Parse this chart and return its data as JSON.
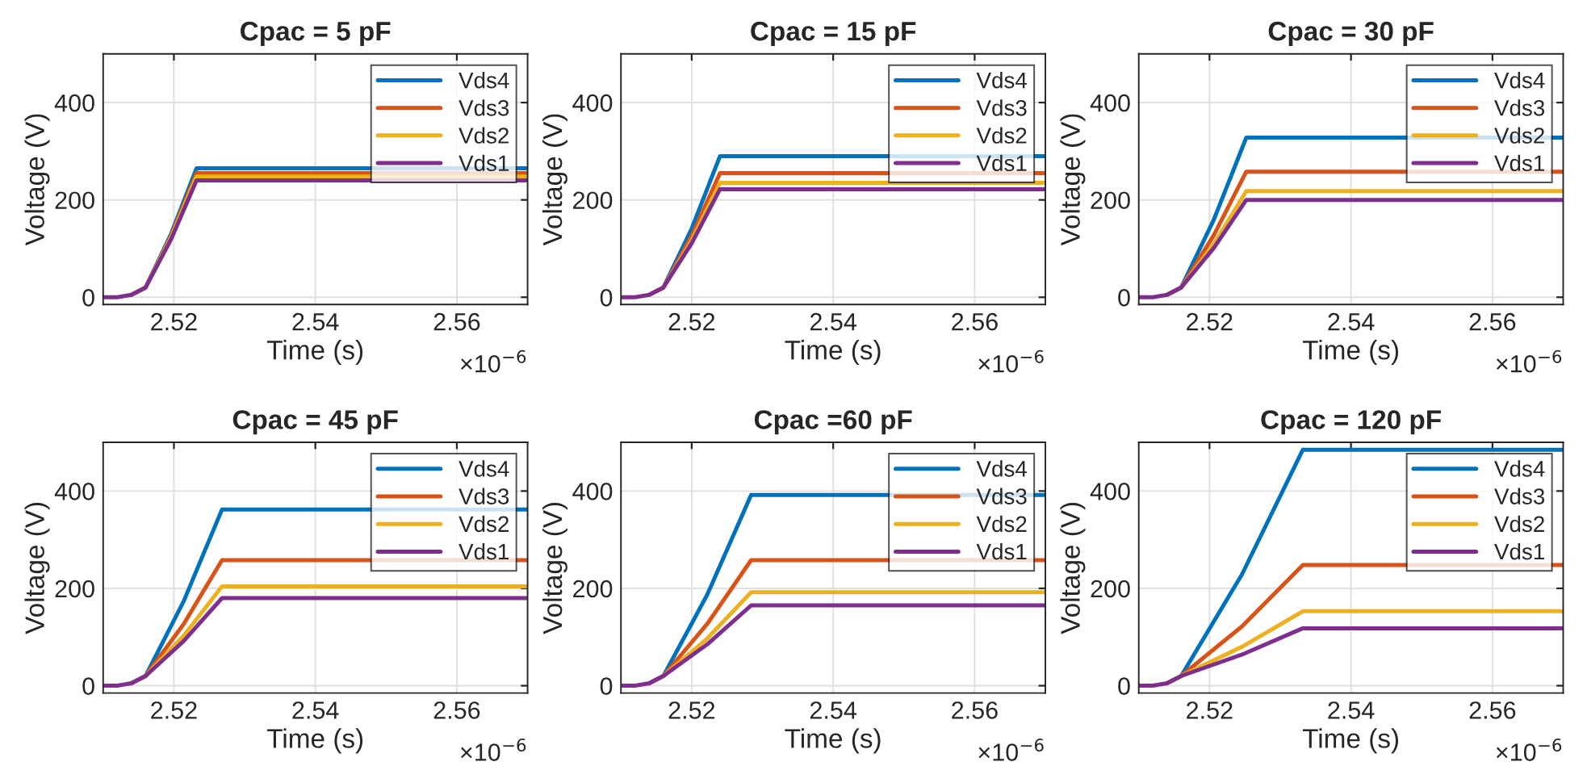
{
  "chart_data": [
    {
      "type": "line",
      "title": "Cpac = 5 pF",
      "xlabel": "Time (s)",
      "ylabel": "Voltage (V)",
      "annotations": [
        "×10$^{−6}$"
      ],
      "x": [
        2.51,
        2.512,
        2.514,
        2.516,
        2.5196,
        2.5232,
        2.57
      ],
      "xlim": [
        2.51,
        2.57
      ],
      "xticks": [
        2.52,
        2.54,
        2.56
      ],
      "ylim": [
        -15,
        500
      ],
      "yticks": [
        0,
        200,
        400
      ],
      "grid": true,
      "legend": "top right",
      "line_style": "solid",
      "marker": "none",
      "series": [
        {
          "name": "Vds4",
          "color": "#0072bd",
          "values": [
            null,
            null,
            5,
            20,
            130,
            265,
            265
          ]
        },
        {
          "name": "Vds3",
          "color": "#d95319",
          "values": [
            null,
            null,
            5,
            20,
            126,
            255,
            255
          ]
        },
        {
          "name": "Vds2",
          "color": "#edb120",
          "values": [
            null,
            null,
            5,
            20,
            123,
            248,
            248
          ]
        },
        {
          "name": "Vds1",
          "color": "#7e2f8e",
          "values": [
            0,
            0,
            5,
            20,
            119,
            240,
            240
          ]
        }
      ]
    },
    {
      "type": "line",
      "title": "Cpac = 15 pF",
      "xlabel": "Time (s)",
      "ylabel": "Voltage (V)",
      "annotations": [
        "×10$^{−6}$"
      ],
      "x": [
        2.51,
        2.512,
        2.514,
        2.516,
        2.52,
        2.524,
        2.57
      ],
      "xlim": [
        2.51,
        2.57
      ],
      "xticks": [
        2.52,
        2.54,
        2.56
      ],
      "ylim": [
        -15,
        500
      ],
      "yticks": [
        0,
        200,
        400
      ],
      "grid": true,
      "legend": "top right",
      "line_style": "solid",
      "marker": "none",
      "series": [
        {
          "name": "Vds4",
          "color": "#0072bd",
          "values": [
            null,
            null,
            5,
            20,
            141,
            290,
            290
          ]
        },
        {
          "name": "Vds3",
          "color": "#d95319",
          "values": [
            null,
            null,
            5,
            20,
            126,
            255,
            255
          ]
        },
        {
          "name": "Vds2",
          "color": "#edb120",
          "values": [
            null,
            null,
            5,
            20,
            117,
            235,
            235
          ]
        },
        {
          "name": "Vds1",
          "color": "#7e2f8e",
          "values": [
            0,
            0,
            5,
            20,
            111,
            222,
            222
          ]
        }
      ]
    },
    {
      "type": "line",
      "title": "Cpac = 30 pF",
      "xlabel": "Time (s)",
      "ylabel": "Voltage (V)",
      "annotations": [
        "×10$^{−6}$"
      ],
      "x": [
        2.51,
        2.512,
        2.514,
        2.516,
        2.5206,
        2.5252,
        2.57
      ],
      "xlim": [
        2.51,
        2.57
      ],
      "xticks": [
        2.52,
        2.54,
        2.56
      ],
      "ylim": [
        -15,
        500
      ],
      "yticks": [
        0,
        200,
        400
      ],
      "grid": true,
      "legend": "top right",
      "line_style": "solid",
      "marker": "none",
      "series": [
        {
          "name": "Vds4",
          "color": "#0072bd",
          "values": [
            null,
            null,
            5,
            20,
            159,
            328,
            328
          ]
        },
        {
          "name": "Vds3",
          "color": "#d95319",
          "values": [
            null,
            null,
            5,
            20,
            127,
            258,
            258
          ]
        },
        {
          "name": "Vds2",
          "color": "#edb120",
          "values": [
            null,
            null,
            5,
            20,
            109,
            218,
            218
          ]
        },
        {
          "name": "Vds1",
          "color": "#7e2f8e",
          "values": [
            0,
            0,
            5,
            20,
            101,
            200,
            200
          ]
        }
      ]
    },
    {
      "type": "line",
      "title": "Cpac = 45 pF",
      "xlabel": "Time (s)",
      "ylabel": "Voltage (V)",
      "annotations": [
        "×10$^{−6}$"
      ],
      "x": [
        2.51,
        2.512,
        2.514,
        2.516,
        2.5214,
        2.5268,
        2.57
      ],
      "xlim": [
        2.51,
        2.57
      ],
      "xticks": [
        2.52,
        2.54,
        2.56
      ],
      "ylim": [
        -15,
        500
      ],
      "yticks": [
        0,
        200,
        400
      ],
      "grid": true,
      "legend": "top right",
      "line_style": "solid",
      "marker": "none",
      "series": [
        {
          "name": "Vds4",
          "color": "#0072bd",
          "values": [
            null,
            null,
            5,
            20,
            174,
            362,
            362
          ]
        },
        {
          "name": "Vds3",
          "color": "#d95319",
          "values": [
            null,
            null,
            5,
            20,
            127,
            258,
            258
          ]
        },
        {
          "name": "Vds2",
          "color": "#edb120",
          "values": [
            null,
            null,
            5,
            20,
            103,
            204,
            204
          ]
        },
        {
          "name": "Vds1",
          "color": "#7e2f8e",
          "values": [
            0,
            0,
            5,
            20,
            92,
            180,
            180
          ]
        }
      ]
    },
    {
      "type": "line",
      "title": "Cpac =60 pF",
      "xlabel": "Time (s)",
      "ylabel": "Voltage (V)",
      "annotations": [
        "×10$^{−6}$"
      ],
      "x": [
        2.51,
        2.512,
        2.514,
        2.516,
        2.5222,
        2.5284,
        2.57
      ],
      "xlim": [
        2.51,
        2.57
      ],
      "xticks": [
        2.52,
        2.54,
        2.56
      ],
      "ylim": [
        -15,
        500
      ],
      "yticks": [
        0,
        200,
        400
      ],
      "grid": true,
      "legend": "top right",
      "line_style": "solid",
      "marker": "none",
      "series": [
        {
          "name": "Vds4",
          "color": "#0072bd",
          "values": [
            null,
            null,
            5,
            20,
            187,
            392,
            392
          ]
        },
        {
          "name": "Vds3",
          "color": "#d95319",
          "values": [
            null,
            null,
            5,
            20,
            127,
            258,
            258
          ]
        },
        {
          "name": "Vds2",
          "color": "#edb120",
          "values": [
            null,
            null,
            5,
            20,
            97,
            192,
            192
          ]
        },
        {
          "name": "Vds1",
          "color": "#7e2f8e",
          "values": [
            0,
            0,
            5,
            20,
            85,
            165,
            165
          ]
        }
      ]
    },
    {
      "type": "line",
      "title": "Cpac = 120 pF",
      "xlabel": "Time (s)",
      "ylabel": "Voltage (V)",
      "annotations": [
        "×10$^{−6}$"
      ],
      "x": [
        2.51,
        2.512,
        2.514,
        2.516,
        2.5246,
        2.5332,
        2.57
      ],
      "xlim": [
        2.51,
        2.57
      ],
      "xticks": [
        2.52,
        2.54,
        2.56
      ],
      "ylim": [
        -15,
        500
      ],
      "yticks": [
        0,
        200,
        400
      ],
      "grid": true,
      "legend": "top right",
      "line_style": "solid",
      "marker": "none",
      "series": [
        {
          "name": "Vds4",
          "color": "#0072bd",
          "values": [
            null,
            null,
            5,
            20,
            229,
            485,
            485
          ]
        },
        {
          "name": "Vds3",
          "color": "#d95319",
          "values": [
            null,
            null,
            5,
            20,
            122,
            248,
            248
          ]
        },
        {
          "name": "Vds2",
          "color": "#edb120",
          "values": [
            null,
            null,
            5,
            20,
            80,
            153,
            153
          ]
        },
        {
          "name": "Vds1",
          "color": "#7e2f8e",
          "values": [
            0,
            0,
            5,
            20,
            64,
            118,
            118
          ]
        }
      ]
    }
  ]
}
